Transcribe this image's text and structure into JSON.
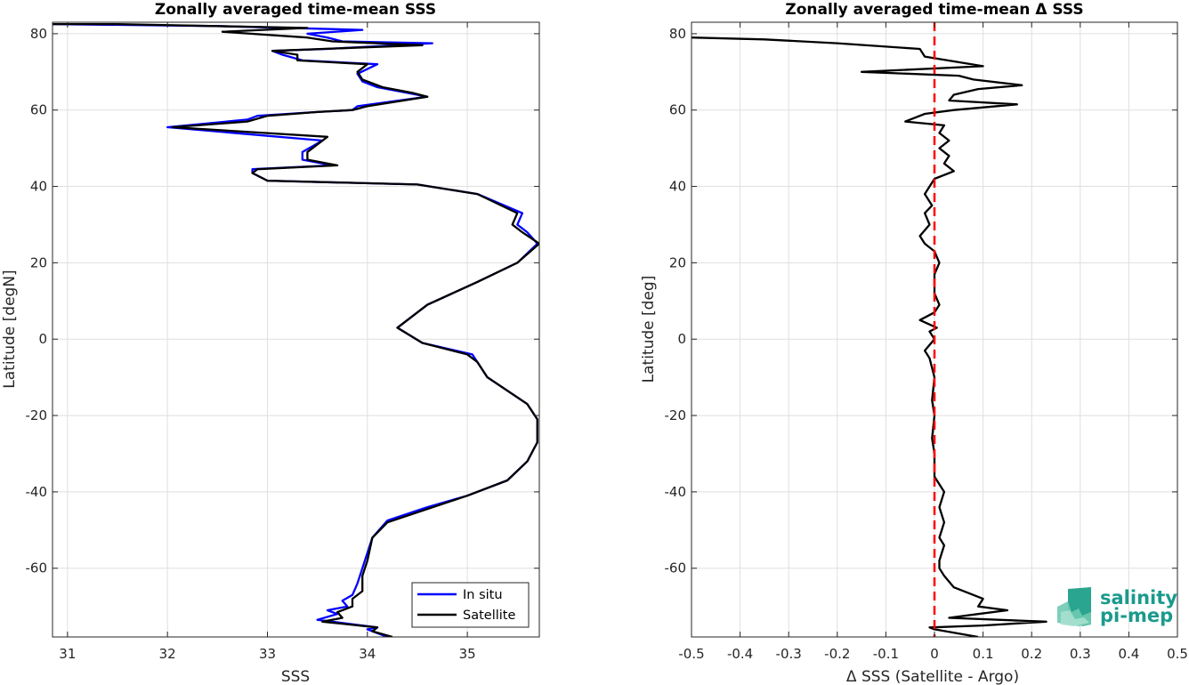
{
  "chart_data": [
    {
      "type": "line",
      "title": "Zonally averaged time-mean SSS",
      "xlabel": "SSS",
      "ylabel": "Latitude [degN]",
      "xlim": [
        30.85,
        35.72
      ],
      "ylim": [
        -78,
        83
      ],
      "xticks": [
        31,
        32,
        33,
        34,
        35
      ],
      "yticks": [
        -60,
        -40,
        -20,
        0,
        20,
        40,
        60,
        80
      ],
      "grid": true,
      "legend_position": "bottom-right",
      "series": [
        {
          "name": "In situ",
          "color": "#0000ff",
          "points": [
            [
              34.2,
              -78
            ],
            [
              34.0,
              -76
            ],
            [
              34.1,
              -75.5
            ],
            [
              33.8,
              -74.5
            ],
            [
              33.5,
              -73.5
            ],
            [
              33.7,
              -72
            ],
            [
              33.6,
              -71
            ],
            [
              33.8,
              -70
            ],
            [
              33.75,
              -68.5
            ],
            [
              33.85,
              -67
            ],
            [
              33.9,
              -64
            ],
            [
              33.95,
              -60
            ],
            [
              34.05,
              -52
            ],
            [
              34.2,
              -47.5
            ],
            [
              34.6,
              -44
            ],
            [
              35.0,
              -41
            ],
            [
              35.4,
              -37
            ],
            [
              35.6,
              -32
            ],
            [
              35.7,
              -27
            ],
            [
              35.7,
              -21
            ],
            [
              35.6,
              -17
            ],
            [
              35.2,
              -10
            ],
            [
              35.1,
              -6
            ],
            [
              35.05,
              -4
            ],
            [
              34.55,
              -1
            ],
            [
              34.3,
              3
            ],
            [
              34.6,
              9
            ],
            [
              35.1,
              15
            ],
            [
              35.5,
              20
            ],
            [
              35.7,
              25
            ],
            [
              35.6,
              28
            ],
            [
              35.5,
              30
            ],
            [
              35.55,
              33
            ],
            [
              35.1,
              38
            ],
            [
              34.5,
              40.5
            ],
            [
              33.0,
              41.5
            ],
            [
              32.85,
              43.5
            ],
            [
              32.85,
              44.5
            ],
            [
              33.65,
              45.5
            ],
            [
              33.35,
              47
            ],
            [
              33.35,
              49
            ],
            [
              33.55,
              52
            ],
            [
              32.0,
              55.5
            ],
            [
              32.8,
              57.5
            ],
            [
              32.9,
              58.5
            ],
            [
              33.5,
              59.5
            ],
            [
              33.85,
              60
            ],
            [
              33.9,
              61
            ],
            [
              34.6,
              63.5
            ],
            [
              34.4,
              64.5
            ],
            [
              34.1,
              66
            ],
            [
              33.95,
              67.5
            ],
            [
              33.9,
              69.5
            ],
            [
              34.1,
              72
            ],
            [
              33.35,
              73
            ],
            [
              33.15,
              74.5
            ],
            [
              33.05,
              75.5
            ],
            [
              33.6,
              76
            ],
            [
              34.65,
              77.5
            ],
            [
              33.75,
              78
            ],
            [
              33.6,
              79
            ],
            [
              33.4,
              80
            ],
            [
              33.95,
              81
            ],
            [
              32.5,
              82
            ],
            [
              30.85,
              82.5
            ]
          ]
        },
        {
          "name": "Satellite",
          "color": "#000000",
          "points": [
            [
              34.25,
              -78
            ],
            [
              34.05,
              -76.5
            ],
            [
              34.1,
              -75.5
            ],
            [
              33.55,
              -74
            ],
            [
              33.75,
              -73
            ],
            [
              33.7,
              -71.5
            ],
            [
              33.85,
              -70
            ],
            [
              33.85,
              -68
            ],
            [
              33.95,
              -66
            ],
            [
              33.95,
              -62
            ],
            [
              34.0,
              -58
            ],
            [
              34.05,
              -52
            ],
            [
              34.2,
              -48
            ],
            [
              34.6,
              -44.5
            ],
            [
              35.0,
              -41
            ],
            [
              35.4,
              -37
            ],
            [
              35.6,
              -32
            ],
            [
              35.7,
              -27
            ],
            [
              35.7,
              -21
            ],
            [
              35.6,
              -17
            ],
            [
              35.2,
              -10
            ],
            [
              35.1,
              -6
            ],
            [
              35.0,
              -4
            ],
            [
              34.55,
              -1
            ],
            [
              34.3,
              3
            ],
            [
              34.6,
              9
            ],
            [
              35.1,
              15
            ],
            [
              35.5,
              20
            ],
            [
              35.72,
              25
            ],
            [
              35.55,
              28
            ],
            [
              35.45,
              30
            ],
            [
              35.5,
              33
            ],
            [
              35.1,
              38
            ],
            [
              34.5,
              40.5
            ],
            [
              33.0,
              41.5
            ],
            [
              32.85,
              43.5
            ],
            [
              32.9,
              44.5
            ],
            [
              33.7,
              45.5
            ],
            [
              33.4,
              47
            ],
            [
              33.4,
              49
            ],
            [
              33.6,
              53
            ],
            [
              32.05,
              55.5
            ],
            [
              32.8,
              57
            ],
            [
              33.0,
              58.5
            ],
            [
              33.5,
              59.5
            ],
            [
              33.85,
              60
            ],
            [
              34.0,
              61
            ],
            [
              34.6,
              63.5
            ],
            [
              34.45,
              64.5
            ],
            [
              34.15,
              66
            ],
            [
              33.95,
              68
            ],
            [
              33.9,
              70
            ],
            [
              34.0,
              72
            ],
            [
              33.3,
              73
            ],
            [
              33.3,
              74.5
            ],
            [
              33.05,
              75.5
            ],
            [
              33.55,
              76
            ],
            [
              34.55,
              77
            ],
            [
              33.65,
              78
            ],
            [
              33.4,
              79
            ],
            [
              32.55,
              80.5
            ],
            [
              33.4,
              81.5
            ],
            [
              31.5,
              82.5
            ],
            [
              30.85,
              82.5
            ]
          ]
        }
      ]
    },
    {
      "type": "line",
      "title": "Zonally averaged time-mean Δ SSS",
      "xlabel": "Δ SSS (Satellite - Argo)",
      "ylabel": "Latitude [deg]",
      "xlim": [
        -0.5,
        0.5
      ],
      "ylim": [
        -78,
        83
      ],
      "xticks": [
        -0.5,
        -0.4,
        -0.3,
        -0.2,
        -0.1,
        0,
        0.1,
        0.2,
        0.3,
        0.4,
        0.5
      ],
      "xtick_labels": [
        "-0.5",
        "-0.4",
        "-0.3",
        "-0.2",
        "-0.1",
        "0",
        "0.1",
        "0.2",
        "0.3",
        "0.4",
        "0.5"
      ],
      "yticks": [
        -60,
        -40,
        -20,
        0,
        20,
        40,
        60,
        80
      ],
      "grid": true,
      "reference_line": {
        "x": 0,
        "color": "#ff0000",
        "style": "dashed"
      },
      "series": [
        {
          "name": "",
          "color": "#000000",
          "points": [
            [
              0.09,
              -78
            ],
            [
              0.0,
              -76
            ],
            [
              -0.01,
              -75.5
            ],
            [
              0.1,
              -75
            ],
            [
              0.23,
              -74
            ],
            [
              0.03,
              -73
            ],
            [
              0.09,
              -72
            ],
            [
              0.15,
              -71
            ],
            [
              0.09,
              -70
            ],
            [
              0.1,
              -68
            ],
            [
              0.04,
              -65
            ],
            [
              0.02,
              -62
            ],
            [
              0.01,
              -60
            ],
            [
              0.01,
              -58
            ],
            [
              0.02,
              -54
            ],
            [
              0.01,
              -52
            ],
            [
              0.02,
              -48
            ],
            [
              0.01,
              -44
            ],
            [
              0.02,
              -40
            ],
            [
              0.0,
              -36
            ],
            [
              0.0,
              -30
            ],
            [
              -0.005,
              -26
            ],
            [
              0.0,
              -20
            ],
            [
              -0.005,
              -16
            ],
            [
              0.0,
              -10
            ],
            [
              -0.01,
              -5
            ],
            [
              -0.02,
              -3
            ],
            [
              0.0,
              0
            ],
            [
              -0.01,
              2
            ],
            [
              0.005,
              3
            ],
            [
              -0.03,
              5
            ],
            [
              0.0,
              7
            ],
            [
              0.01,
              9
            ],
            [
              0.0,
              12
            ],
            [
              0.0,
              17
            ],
            [
              0.01,
              20
            ],
            [
              0.0,
              23
            ],
            [
              -0.02,
              25
            ],
            [
              -0.03,
              27
            ],
            [
              -0.01,
              30
            ],
            [
              -0.02,
              33
            ],
            [
              -0.005,
              35
            ],
            [
              -0.02,
              38
            ],
            [
              -0.01,
              40
            ],
            [
              0.0,
              42
            ],
            [
              0.04,
              44
            ],
            [
              0.02,
              46
            ],
            [
              0.03,
              48
            ],
            [
              0.01,
              50
            ],
            [
              0.03,
              52
            ],
            [
              0.01,
              54
            ],
            [
              0.02,
              56
            ],
            [
              -0.06,
              57
            ],
            [
              -0.02,
              59
            ],
            [
              0.04,
              60
            ],
            [
              0.17,
              61.5
            ],
            [
              0.03,
              62.5
            ],
            [
              0.04,
              64
            ],
            [
              0.09,
              65.5
            ],
            [
              0.18,
              66.5
            ],
            [
              0.08,
              68
            ],
            [
              0.05,
              69
            ],
            [
              -0.15,
              70
            ],
            [
              0.1,
              71.5
            ],
            [
              -0.02,
              74
            ],
            [
              -0.03,
              76
            ],
            [
              -0.2,
              77.5
            ],
            [
              -0.35,
              78.5
            ],
            [
              -0.5,
              79
            ]
          ]
        }
      ]
    }
  ],
  "legend": {
    "items": [
      "In situ",
      "Satellite"
    ]
  },
  "logo": {
    "line1": "salinity",
    "line2": "pi-mep"
  }
}
